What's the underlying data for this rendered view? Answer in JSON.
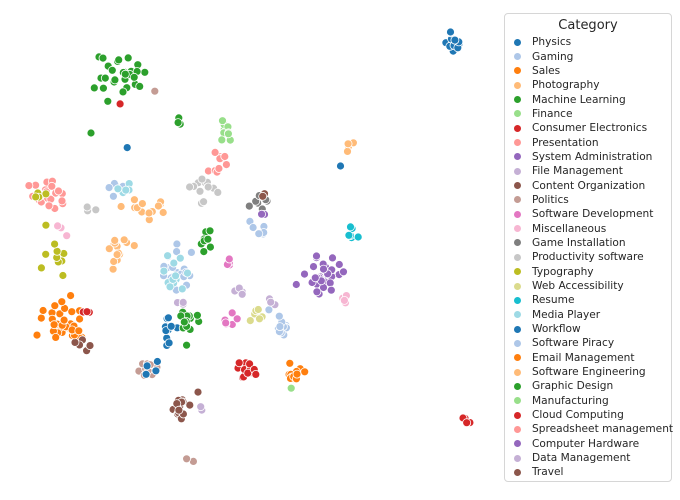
{
  "chart_data": {
    "type": "scatter",
    "title": "",
    "xlabel": "",
    "ylabel": "",
    "axes_visible": false,
    "grid": false,
    "legend_title": "Category",
    "legend_position": "right",
    "series": [
      {
        "name": "Physics",
        "color": "#1f77b4",
        "clusters": [
          {
            "cx": 455,
            "cy": 45,
            "r": 8,
            "n": 14
          },
          {
            "cx": 448,
            "cy": 30,
            "r": 4,
            "n": 2
          }
        ]
      },
      {
        "name": "Gaming",
        "color": "#aec7e8",
        "clusters": [
          {
            "cx": 180,
            "cy": 270,
            "r": 18,
            "n": 18
          },
          {
            "cx": 120,
            "cy": 188,
            "r": 10,
            "n": 5
          }
        ]
      },
      {
        "name": "Sales",
        "color": "#ff7f0e",
        "clusters": [
          {
            "cx": 62,
            "cy": 320,
            "r": 22,
            "n": 24
          },
          {
            "cx": 295,
            "cy": 370,
            "r": 10,
            "n": 7
          }
        ]
      },
      {
        "name": "Photography",
        "color": "#ffbb78",
        "clusters": [
          {
            "cx": 118,
            "cy": 250,
            "r": 14,
            "n": 14
          },
          {
            "cx": 150,
            "cy": 205,
            "r": 16,
            "n": 8
          },
          {
            "cx": 350,
            "cy": 145,
            "r": 6,
            "n": 4
          }
        ]
      },
      {
        "name": "Machine Learning",
        "color": "#2ca02c",
        "clusters": [
          {
            "cx": 122,
            "cy": 75,
            "r": 22,
            "n": 28
          },
          {
            "cx": 176,
            "cy": 120,
            "r": 5,
            "n": 4
          }
        ]
      },
      {
        "name": "Finance",
        "color": "#98df8a",
        "clusters": [
          {
            "cx": 222,
            "cy": 130,
            "r": 10,
            "n": 6
          },
          {
            "cx": 290,
            "cy": 390,
            "r": 3,
            "n": 1
          }
        ]
      },
      {
        "name": "Consumer Electronics",
        "color": "#d62728",
        "clusters": [
          {
            "cx": 245,
            "cy": 370,
            "r": 12,
            "n": 10
          },
          {
            "cx": 466,
            "cy": 422,
            "r": 6,
            "n": 5
          }
        ]
      },
      {
        "name": "Presentation",
        "color": "#ff9896",
        "clusters": [
          {
            "cx": 48,
            "cy": 193,
            "r": 16,
            "n": 12
          },
          {
            "cx": 220,
            "cy": 158,
            "r": 8,
            "n": 6
          }
        ]
      },
      {
        "name": "System Administration",
        "color": "#9467bd",
        "clusters": [
          {
            "cx": 325,
            "cy": 275,
            "r": 15,
            "n": 22
          }
        ]
      },
      {
        "name": "File Management",
        "color": "#c5b0d5",
        "clusters": [
          {
            "cx": 240,
            "cy": 290,
            "r": 7,
            "n": 4
          },
          {
            "cx": 200,
            "cy": 405,
            "r": 4,
            "n": 2
          }
        ]
      },
      {
        "name": "Content Organization",
        "color": "#8c564b",
        "clusters": [
          {
            "cx": 183,
            "cy": 403,
            "r": 10,
            "n": 9
          },
          {
            "cx": 80,
            "cy": 345,
            "r": 6,
            "n": 3
          }
        ]
      },
      {
        "name": "Politics",
        "color": "#c49c94",
        "clusters": [
          {
            "cx": 145,
            "cy": 370,
            "r": 12,
            "n": 10
          },
          {
            "cx": 190,
            "cy": 460,
            "r": 3,
            "n": 2
          },
          {
            "cx": 155,
            "cy": 92,
            "r": 2,
            "n": 1
          }
        ]
      },
      {
        "name": "Software Development",
        "color": "#e377c2",
        "clusters": [
          {
            "cx": 225,
            "cy": 320,
            "r": 8,
            "n": 6
          },
          {
            "cx": 230,
            "cy": 262,
            "r": 6,
            "n": 4
          }
        ]
      },
      {
        "name": "Miscellaneous",
        "color": "#f7b6d2",
        "clusters": [
          {
            "cx": 345,
            "cy": 298,
            "r": 5,
            "n": 4
          },
          {
            "cx": 60,
            "cy": 230,
            "r": 6,
            "n": 3
          }
        ]
      },
      {
        "name": "Game Installation",
        "color": "#7f7f7f",
        "clusters": [
          {
            "cx": 262,
            "cy": 205,
            "r": 8,
            "n": 8
          }
        ]
      },
      {
        "name": "Productivity software",
        "color": "#c7c7c7",
        "clusters": [
          {
            "cx": 205,
            "cy": 190,
            "r": 14,
            "n": 12
          },
          {
            "cx": 90,
            "cy": 207,
            "r": 6,
            "n": 3
          }
        ]
      },
      {
        "name": "Typography",
        "color": "#bcbd22",
        "clusters": [
          {
            "cx": 55,
            "cy": 255,
            "r": 16,
            "n": 10
          },
          {
            "cx": 40,
            "cy": 195,
            "r": 8,
            "n": 4
          }
        ]
      },
      {
        "name": "Web Accessibility",
        "color": "#dbdb8d",
        "clusters": [
          {
            "cx": 258,
            "cy": 315,
            "r": 8,
            "n": 6
          }
        ]
      },
      {
        "name": "Resume",
        "color": "#17becf",
        "clusters": [
          {
            "cx": 352,
            "cy": 237,
            "r": 7,
            "n": 6
          }
        ]
      },
      {
        "name": "Media Player",
        "color": "#9edae5",
        "clusters": [
          {
            "cx": 175,
            "cy": 272,
            "r": 14,
            "n": 12
          },
          {
            "cx": 125,
            "cy": 190,
            "r": 8,
            "n": 5
          }
        ]
      },
      {
        "name": "Workflow",
        "color": "#1f77b4",
        "clusters": [
          {
            "cx": 165,
            "cy": 330,
            "r": 12,
            "n": 10
          },
          {
            "cx": 150,
            "cy": 370,
            "r": 6,
            "n": 4
          },
          {
            "cx": 128,
            "cy": 147,
            "r": 2,
            "n": 1
          },
          {
            "cx": 342,
            "cy": 168,
            "r": 2,
            "n": 1
          }
        ]
      },
      {
        "name": "Software Piracy",
        "color": "#aec7e8",
        "clusters": [
          {
            "cx": 282,
            "cy": 322,
            "r": 12,
            "n": 12
          },
          {
            "cx": 258,
            "cy": 228,
            "r": 10,
            "n": 6
          }
        ]
      },
      {
        "name": "Email Management",
        "color": "#ff7f0e",
        "clusters": [
          {
            "cx": 68,
            "cy": 330,
            "r": 16,
            "n": 12
          },
          {
            "cx": 293,
            "cy": 377,
            "r": 8,
            "n": 5
          }
        ]
      },
      {
        "name": "Software Engineering",
        "color": "#ffbb78",
        "clusters": [
          {
            "cx": 135,
            "cy": 207,
            "r": 12,
            "n": 6
          }
        ]
      },
      {
        "name": "Graphic Design",
        "color": "#2ca02c",
        "clusters": [
          {
            "cx": 190,
            "cy": 320,
            "r": 14,
            "n": 14
          },
          {
            "cx": 205,
            "cy": 240,
            "r": 10,
            "n": 8
          },
          {
            "cx": 92,
            "cy": 133,
            "r": 2,
            "n": 1
          }
        ]
      },
      {
        "name": "Manufacturing",
        "color": "#98df8a",
        "clusters": [
          {
            "cx": 225,
            "cy": 135,
            "r": 6,
            "n": 4
          }
        ]
      },
      {
        "name": "Cloud Computing",
        "color": "#d62728",
        "clusters": [
          {
            "cx": 250,
            "cy": 368,
            "r": 9,
            "n": 6
          },
          {
            "cx": 85,
            "cy": 310,
            "r": 5,
            "n": 3
          },
          {
            "cx": 120,
            "cy": 103,
            "r": 2,
            "n": 1
          }
        ]
      },
      {
        "name": "Spreadsheet management",
        "color": "#ff9896",
        "clusters": [
          {
            "cx": 58,
            "cy": 196,
            "r": 12,
            "n": 8
          },
          {
            "cx": 215,
            "cy": 170,
            "r": 8,
            "n": 5
          }
        ]
      },
      {
        "name": "Computer Hardware",
        "color": "#9467bd",
        "clusters": [
          {
            "cx": 322,
            "cy": 280,
            "r": 12,
            "n": 14
          },
          {
            "cx": 262,
            "cy": 215,
            "r": 4,
            "n": 2
          }
        ]
      },
      {
        "name": "Data Management",
        "color": "#c5b0d5",
        "clusters": [
          {
            "cx": 270,
            "cy": 300,
            "r": 6,
            "n": 3
          },
          {
            "cx": 180,
            "cy": 300,
            "r": 6,
            "n": 3
          }
        ]
      },
      {
        "name": "Travel",
        "color": "#8c564b",
        "clusters": [
          {
            "cx": 180,
            "cy": 408,
            "r": 8,
            "n": 6
          },
          {
            "cx": 88,
            "cy": 348,
            "r": 4,
            "n": 2
          },
          {
            "cx": 265,
            "cy": 195,
            "r": 4,
            "n": 2
          }
        ]
      }
    ]
  }
}
